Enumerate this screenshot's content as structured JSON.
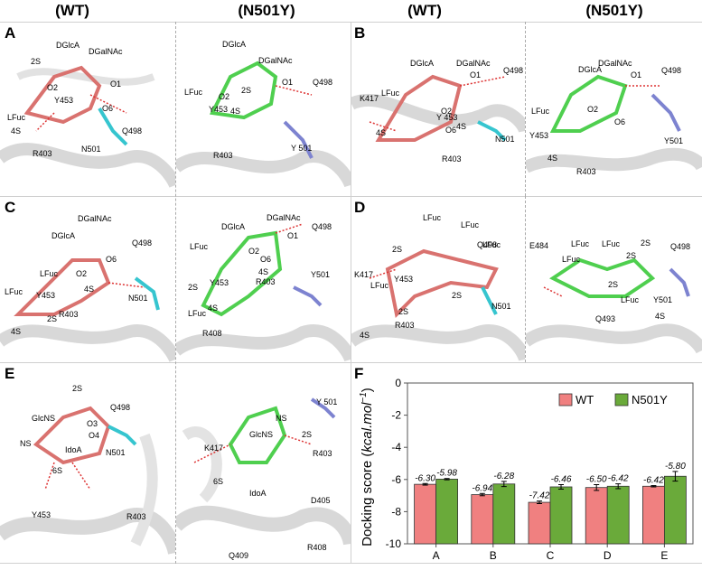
{
  "headers": [
    "(WT)",
    "(N501Y)",
    "(WT)",
    "(N501Y)"
  ],
  "panel_letters": [
    "A",
    "B",
    "C",
    "D",
    "E",
    "F"
  ],
  "panels": {
    "A_wt": [
      "DGlcA",
      "DGalNAc",
      "2S",
      "O2",
      "O1",
      "LFuc",
      "Y453",
      "O6",
      "Q498",
      "4S",
      "R403",
      "N501"
    ],
    "A_mut": [
      "DGlcA",
      "DGalNAc",
      "LFuc",
      "O2",
      "2S",
      "O1",
      "Q498",
      "Y453",
      "4S",
      "R403",
      "Y 501"
    ],
    "B_wt": [
      "DGlcA",
      "DGalNAc",
      "O1",
      "Q498",
      "K417",
      "LFuc",
      "O2",
      "Y 453",
      "O6",
      "4S",
      "4S",
      "N501",
      "R403"
    ],
    "B_mut": [
      "DGlcA",
      "DGalNAc",
      "O1",
      "Q498",
      "LFuc",
      "O2",
      "Y453",
      "O6",
      "Y501",
      "4S",
      "R403"
    ],
    "C_wt": [
      "DGlcA",
      "DGalNAc",
      "Q498",
      "LFuc",
      "O2",
      "O6",
      "Y453",
      "4S",
      "N501",
      "LFuc",
      "2S",
      "R403",
      "4S"
    ],
    "C_mut": [
      "DGlcA",
      "DGalNAc",
      "Q498",
      "O1",
      "LFuc",
      "O2",
      "O6",
      "4S",
      "2S",
      "Y453",
      "R403",
      "Y501",
      "LFuc",
      "4S",
      "R408"
    ],
    "D_wt": [
      "LFuc",
      "LFuc",
      "LFuc",
      "Q498",
      "2S",
      "K417",
      "Y453",
      "LFuc",
      "2S",
      "2S",
      "4S",
      "R403",
      "N501"
    ],
    "D_mut": [
      "E484",
      "LFuc",
      "LFuc",
      "2S",
      "Q498",
      "LFuc",
      "2S",
      "2S",
      "Y501",
      "Q493",
      "LFuc",
      "4S"
    ],
    "E_wt": [
      "2S",
      "GlcNS",
      "Q498",
      "O3",
      "NS",
      "O4",
      "IdoA",
      "N501",
      "6S",
      "Y453",
      "R403"
    ],
    "E_mut": [
      "Y 501",
      "NS",
      "GlcNS",
      "2S",
      "K417",
      "R403",
      "6S",
      "IdoA",
      "D405",
      "Q409",
      "R408"
    ]
  },
  "colors": {
    "wt": "#f08080",
    "n501y": "#6aaa3a"
  },
  "chart_data": {
    "type": "bar",
    "categories": [
      "A",
      "B",
      "C",
      "D",
      "E"
    ],
    "series": [
      {
        "name": "WT",
        "values": [
          -6.3,
          -6.94,
          -7.42,
          -6.5,
          -6.42
        ],
        "errors": [
          0.05,
          0.07,
          0.08,
          0.18,
          0.04
        ],
        "labels": [
          "-6.30",
          "-6.94",
          "-7.42",
          "-6.50",
          "-6.42"
        ]
      },
      {
        "name": "N501Y",
        "values": [
          -5.98,
          -6.28,
          -6.46,
          -6.42,
          -5.8
        ],
        "errors": [
          0.04,
          0.16,
          0.14,
          0.15,
          0.3
        ],
        "labels": [
          "-5.98",
          "-6.28",
          "-6.46",
          "-6.42",
          "-5.80"
        ]
      }
    ],
    "ylabel_main": "Docking score (",
    "ylabel_unit": "kcal.mol",
    "ylabel_exp": "−1",
    "ylabel_close": ")",
    "ylim": [
      0,
      -10
    ],
    "yticks": [
      "0",
      "-2",
      "-4",
      "-6",
      "-8",
      "-10"
    ],
    "legend": "top-right"
  }
}
